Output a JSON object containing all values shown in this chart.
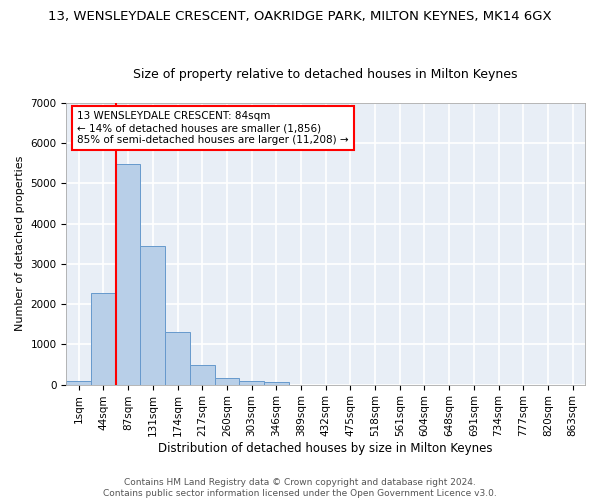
{
  "title": "13, WENSLEYDALE CRESCENT, OAKRIDGE PARK, MILTON KEYNES, MK14 6GX",
  "subtitle": "Size of property relative to detached houses in Milton Keynes",
  "xlabel": "Distribution of detached houses by size in Milton Keynes",
  "ylabel": "Number of detached properties",
  "bar_values": [
    80,
    2280,
    5480,
    3450,
    1310,
    480,
    160,
    90,
    55,
    0,
    0,
    0,
    0,
    0,
    0,
    0,
    0,
    0,
    0,
    0,
    0
  ],
  "bar_labels": [
    "1sqm",
    "44sqm",
    "87sqm",
    "131sqm",
    "174sqm",
    "217sqm",
    "260sqm",
    "303sqm",
    "346sqm",
    "389sqm",
    "432sqm",
    "475sqm",
    "518sqm",
    "561sqm",
    "604sqm",
    "648sqm",
    "691sqm",
    "734sqm",
    "777sqm",
    "820sqm",
    "863sqm"
  ],
  "bar_color": "#b8cfe8",
  "bar_edge_color": "#6699cc",
  "annotation_text": "13 WENSLEYDALE CRESCENT: 84sqm\n← 14% of detached houses are smaller (1,856)\n85% of semi-detached houses are larger (11,208) →",
  "annotation_box_color": "white",
  "annotation_box_edge_color": "red",
  "vline_color": "red",
  "ylim": [
    0,
    7000
  ],
  "yticks": [
    0,
    1000,
    2000,
    3000,
    4000,
    5000,
    6000,
    7000
  ],
  "bg_color": "#e8eef6",
  "grid_color": "white",
  "footer_text": "Contains HM Land Registry data © Crown copyright and database right 2024.\nContains public sector information licensed under the Open Government Licence v3.0.",
  "title_fontsize": 9.5,
  "subtitle_fontsize": 9,
  "xlabel_fontsize": 8.5,
  "ylabel_fontsize": 8,
  "tick_fontsize": 7.5,
  "annotation_fontsize": 7.5,
  "footer_fontsize": 6.5
}
